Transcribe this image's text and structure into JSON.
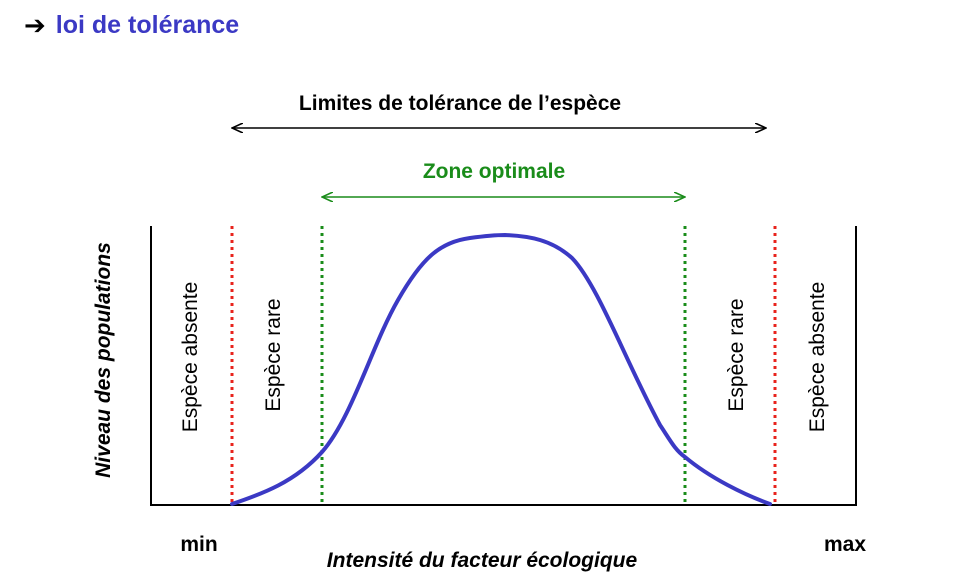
{
  "header": {
    "arrow_icon": "right-arrow-icon",
    "title": "loi de tolérance"
  },
  "diagram": {
    "tolerance_label": "Limites de tolérance de l’espèce",
    "optimal_label": "Zone optimale",
    "y_axis_label": "Niveau des populations",
    "x_axis_label": "Intensité du facteur écologique",
    "x_min_label": "min",
    "x_max_label": "max",
    "zones": {
      "left_absent": "Espèce absente",
      "left_rare": "Espèce rare",
      "right_rare": "Espèce rare",
      "right_absent": "Espèce absente"
    },
    "colors": {
      "curve": "#3b39c4",
      "tolerance_limits": "#e8231c",
      "optimal_limits": "#1a8c1a",
      "optimal_label": "#1a8c1a",
      "title": "#3b39c4",
      "axes": "#000000"
    }
  }
}
